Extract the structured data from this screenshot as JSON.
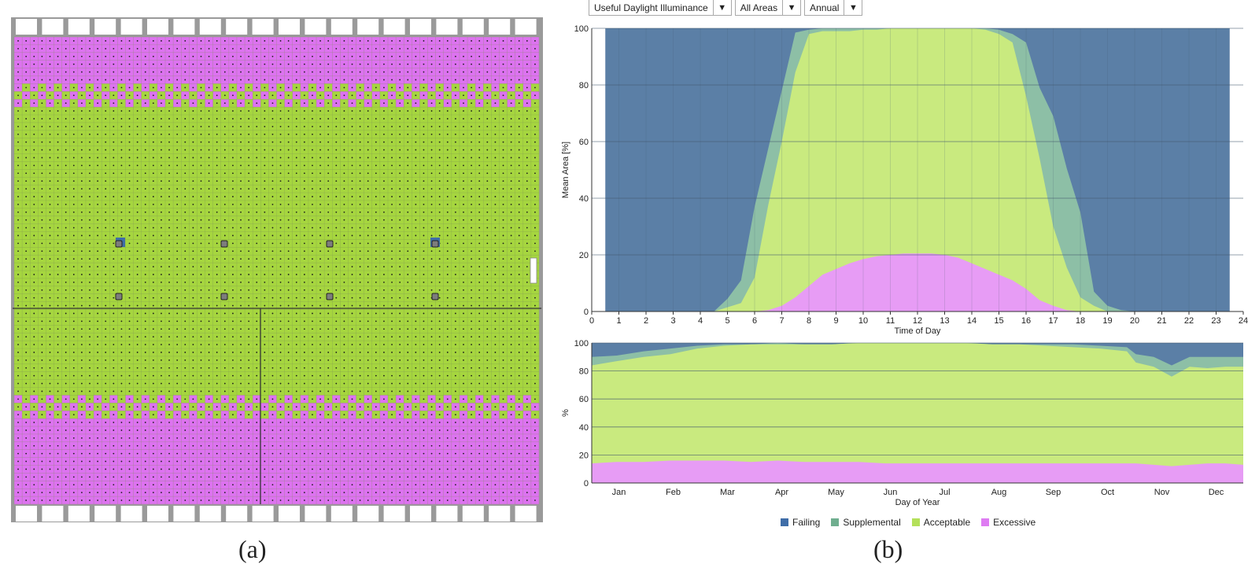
{
  "toolbar": {
    "metric": "Useful Daylight Illuminance",
    "area": "All Areas",
    "period": "Annual"
  },
  "colors": {
    "failing": "#5b7fa6",
    "supplemental": "#8dbfa6",
    "acceptable": "#c9ea7f",
    "excessive": "#e79cf5",
    "grid_green": "#a6d63f",
    "grid_pink": "#dd73f0",
    "sensor_blue": "#3f6da8"
  },
  "legend": [
    {
      "key": "failing",
      "label": "Failing"
    },
    {
      "key": "supplemental",
      "label": "Supplemental"
    },
    {
      "key": "acceptable",
      "label": "Acceptable"
    },
    {
      "key": "excessive",
      "label": "Excessive"
    }
  ],
  "captions": {
    "a": "(a)",
    "b": "(b)"
  },
  "chart_data": [
    {
      "type": "area",
      "stacked": true,
      "title": "",
      "xlabel": "Time of Day",
      "ylabel": "Mean Area [%]",
      "xlim": [
        0,
        24
      ],
      "ylim": [
        0,
        100
      ],
      "xticks": [
        0,
        1,
        2,
        3,
        4,
        5,
        6,
        7,
        8,
        9,
        10,
        11,
        12,
        13,
        14,
        15,
        16,
        17,
        18,
        19,
        20,
        21,
        22,
        23,
        24
      ],
      "yticks": [
        0,
        20,
        40,
        60,
        80,
        100
      ],
      "grid": true,
      "x": [
        0.5,
        4.5,
        5,
        5.5,
        6,
        6.5,
        7,
        7.5,
        8,
        8.5,
        9,
        9.5,
        10,
        10.5,
        11,
        11.5,
        12,
        12.5,
        13,
        13.5,
        14,
        14.5,
        15,
        15.5,
        16,
        16.5,
        17,
        17.5,
        18,
        18.5,
        19,
        19.5,
        20,
        23.5
      ],
      "series": [
        {
          "name": "Excessive",
          "values": [
            0,
            0,
            0,
            0,
            0,
            0.5,
            2,
            5,
            9,
            13,
            15,
            17,
            18.5,
            19.5,
            20,
            20.5,
            20.5,
            20.5,
            20,
            19,
            17,
            15,
            13,
            11,
            8,
            4,
            2,
            0.5,
            0,
            0,
            0,
            0,
            0,
            0
          ]
        },
        {
          "name": "Acceptable",
          "values": [
            0,
            0,
            1.5,
            3,
            12,
            37,
            58,
            79.5,
            89,
            86,
            84,
            82,
            81,
            80,
            80,
            79.5,
            79.5,
            79.5,
            80,
            81,
            83,
            84.5,
            85,
            84,
            68,
            50,
            28,
            15,
            5,
            2,
            0,
            0,
            0,
            0
          ]
        },
        {
          "name": "Supplemental",
          "values": [
            0,
            0,
            3,
            8,
            25,
            20,
            18,
            14,
            1.5,
            1,
            1,
            1,
            0.5,
            0.5,
            0,
            0,
            0,
            0,
            0,
            0,
            0,
            0.5,
            1.5,
            3,
            19,
            25,
            39,
            35,
            30,
            5,
            2,
            0.5,
            0,
            0
          ]
        }
      ],
      "remainder_series": "Failing"
    },
    {
      "type": "area",
      "stacked": true,
      "title": "",
      "xlabel": "Day of Year",
      "ylabel": "%",
      "xlim": [
        1,
        365
      ],
      "ylim": [
        0,
        100
      ],
      "yticks": [
        0,
        20,
        40,
        60,
        80,
        100
      ],
      "categories": [
        "Jan",
        "Feb",
        "Mar",
        "Apr",
        "May",
        "Jun",
        "Jul",
        "Aug",
        "Sep",
        "Oct",
        "Nov",
        "Dec"
      ],
      "grid": true,
      "x": [
        1,
        15,
        30,
        45,
        60,
        75,
        90,
        105,
        120,
        135,
        150,
        165,
        180,
        195,
        210,
        225,
        240,
        255,
        270,
        285,
        300,
        305,
        315,
        325,
        335,
        345,
        355,
        365
      ],
      "series": [
        {
          "name": "Excessive",
          "values": [
            14,
            15,
            15,
            16,
            16,
            16,
            15,
            16,
            15,
            15,
            15,
            14,
            14,
            14,
            14,
            14,
            14,
            14,
            14,
            14,
            14,
            14,
            13,
            12,
            13,
            14,
            14,
            13
          ]
        },
        {
          "name": "Acceptable",
          "values": [
            70,
            72,
            75,
            76,
            80,
            82,
            84,
            83,
            84,
            84,
            85,
            86,
            86,
            86,
            86,
            85,
            85,
            84,
            83,
            82,
            80,
            72,
            70,
            64,
            70,
            68,
            69,
            70
          ]
        },
        {
          "name": "Supplemental",
          "values": [
            6,
            4,
            4,
            4,
            2,
            1,
            0,
            1,
            0,
            0,
            0,
            0,
            0,
            0,
            0,
            0,
            0,
            1,
            2,
            2,
            3,
            6,
            7,
            8,
            7,
            8,
            7,
            7
          ]
        }
      ],
      "remainder_series": "Failing"
    }
  ]
}
